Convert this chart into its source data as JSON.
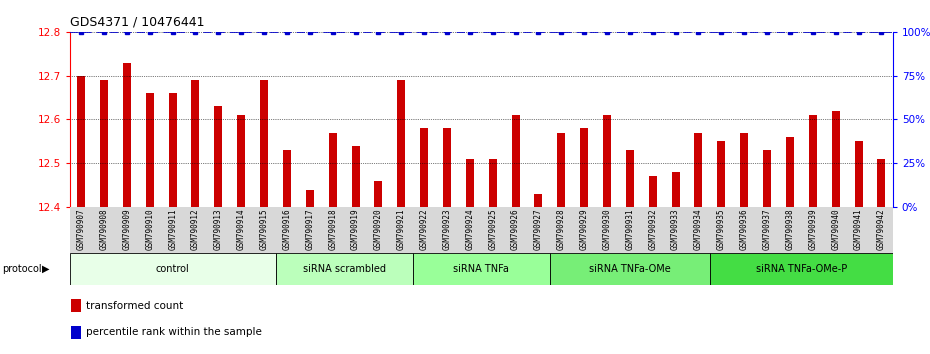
{
  "title": "GDS4371 / 10476441",
  "samples": [
    "GSM790907",
    "GSM790908",
    "GSM790909",
    "GSM790910",
    "GSM790911",
    "GSM790912",
    "GSM790913",
    "GSM790914",
    "GSM790915",
    "GSM790916",
    "GSM790917",
    "GSM790918",
    "GSM790919",
    "GSM790920",
    "GSM790921",
    "GSM790922",
    "GSM790923",
    "GSM790924",
    "GSM790925",
    "GSM790926",
    "GSM790927",
    "GSM790928",
    "GSM790929",
    "GSM790930",
    "GSM790931",
    "GSM790932",
    "GSM790933",
    "GSM790934",
    "GSM790935",
    "GSM790936",
    "GSM790937",
    "GSM790938",
    "GSM790939",
    "GSM790940",
    "GSM790941",
    "GSM790942"
  ],
  "bar_values": [
    12.7,
    12.69,
    12.73,
    12.66,
    12.66,
    12.69,
    12.63,
    12.61,
    12.69,
    12.53,
    12.44,
    12.57,
    12.54,
    12.46,
    12.69,
    12.58,
    12.58,
    12.51,
    12.51,
    12.61,
    12.43,
    12.57,
    12.58,
    12.61,
    12.53,
    12.47,
    12.48,
    12.57,
    12.55,
    12.57,
    12.53,
    12.56,
    12.61,
    12.62,
    12.55,
    12.51
  ],
  "ylim": [
    12.4,
    12.8
  ],
  "yticks": [
    12.4,
    12.5,
    12.6,
    12.7,
    12.8
  ],
  "right_yticks": [
    0,
    25,
    50,
    75,
    100
  ],
  "bar_color": "#cc0000",
  "percentile_color": "#0000cc",
  "groups": [
    {
      "label": "control",
      "start": 0,
      "end": 9,
      "color": "#e8ffe8"
    },
    {
      "label": "siRNA scrambled",
      "start": 9,
      "end": 15,
      "color": "#bbffbb"
    },
    {
      "label": "siRNA TNFa",
      "start": 15,
      "end": 21,
      "color": "#99ff99"
    },
    {
      "label": "siRNA TNFa-OMe",
      "start": 21,
      "end": 28,
      "color": "#77ee77"
    },
    {
      "label": "siRNA TNFa-OMe-P",
      "start": 28,
      "end": 36,
      "color": "#44dd44"
    }
  ],
  "bar_width": 0.35,
  "grid_color": "#000000",
  "background_color": "#ffffff"
}
